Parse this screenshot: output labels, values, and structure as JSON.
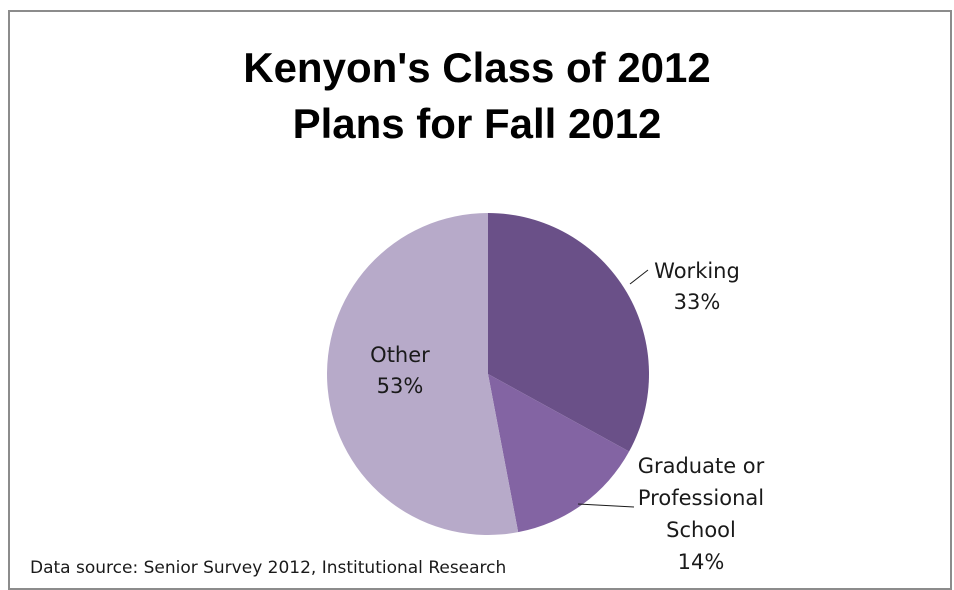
{
  "chart_data": {
    "type": "pie",
    "title_lines": [
      "Kenyon's Class of 2012",
      "Plans for Fall 2012"
    ],
    "slices": [
      {
        "name": "Working",
        "label_lines": [
          "Working"
        ],
        "value": 33,
        "value_label": "33%",
        "color": "#6a5088"
      },
      {
        "name": "Graduate or Professional School",
        "label_lines": [
          "Graduate or",
          "Professional",
          "School"
        ],
        "value": 14,
        "value_label": "14%",
        "color": "#8364a3"
      },
      {
        "name": "Other",
        "label_lines": [
          "Other"
        ],
        "value": 53,
        "value_label": "53%",
        "color": "#b7aac9"
      }
    ],
    "start": "12 o'clock",
    "direction": "clockwise",
    "legend": "none",
    "source": "Data source: Senior Survey 2012, Institutional Research"
  }
}
